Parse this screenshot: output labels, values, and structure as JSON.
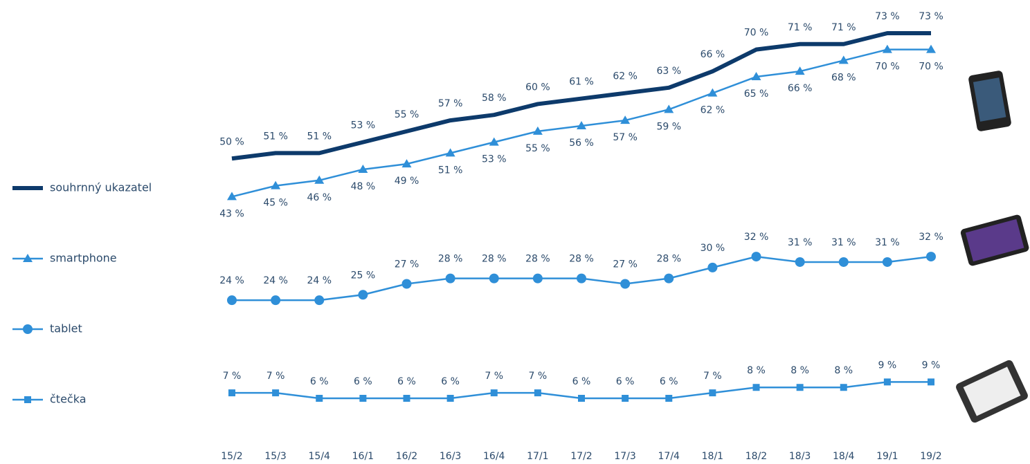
{
  "chart_data": {
    "type": "line",
    "categories": [
      "15/2",
      "15/3",
      "15/4",
      "16/1",
      "16/2",
      "16/3",
      "16/4",
      "17/1",
      "17/2",
      "17/3",
      "17/4",
      "18/1",
      "18/2",
      "18/3",
      "18/4",
      "19/1",
      "19/2"
    ],
    "series": [
      {
        "name": "souhrnný ukazatel",
        "color": "#0d3a6b",
        "marker": "none",
        "values": [
          50,
          51,
          51,
          53,
          55,
          57,
          58,
          60,
          61,
          62,
          63,
          66,
          70,
          71,
          71,
          73,
          73
        ],
        "value_labels": [
          "50 %",
          "51 %",
          "51 %",
          "53 %",
          "55 %",
          "57 %",
          "58 %",
          "60 %",
          "61 %",
          "62 %",
          "63 %",
          "66 %",
          "70 %",
          "71 %",
          "71 %",
          "73 %",
          "73 %"
        ]
      },
      {
        "name": "smartphone",
        "color": "#2f8fd8",
        "marker": "triangle",
        "values": [
          43,
          45,
          46,
          48,
          49,
          51,
          53,
          55,
          56,
          57,
          59,
          62,
          65,
          66,
          68,
          70,
          70
        ],
        "value_labels": [
          "43 %",
          "45 %",
          "46 %",
          "48 %",
          "49 %",
          "51 %",
          "53 %",
          "55 %",
          "56 %",
          "57 %",
          "59 %",
          "62 %",
          "65 %",
          "66 %",
          "68 %",
          "70 %",
          "70 %"
        ]
      },
      {
        "name": "tablet",
        "color": "#2f8fd8",
        "marker": "circle",
        "values": [
          24,
          24,
          24,
          25,
          27,
          28,
          28,
          28,
          28,
          27,
          28,
          30,
          32,
          31,
          31,
          31,
          32
        ],
        "value_labels": [
          "24 %",
          "24 %",
          "24 %",
          "25 %",
          "27 %",
          "28 %",
          "28 %",
          "28 %",
          "28 %",
          "27 %",
          "28 %",
          "30 %",
          "32 %",
          "31 %",
          "31 %",
          "31 %",
          "32 %"
        ]
      },
      {
        "name": "čtečka",
        "color": "#2f8fd8",
        "marker": "square",
        "values": [
          7,
          7,
          6,
          6,
          6,
          6,
          7,
          7,
          6,
          6,
          6,
          7,
          8,
          8,
          8,
          9,
          9
        ],
        "value_labels": [
          "7 %",
          "7 %",
          "6 %",
          "6 %",
          "6 %",
          "6 %",
          "7 %",
          "7 %",
          "6 %",
          "6 %",
          "6 %",
          "7 %",
          "8 %",
          "8 %",
          "8 %",
          "9 %",
          "9 %"
        ]
      }
    ]
  }
}
